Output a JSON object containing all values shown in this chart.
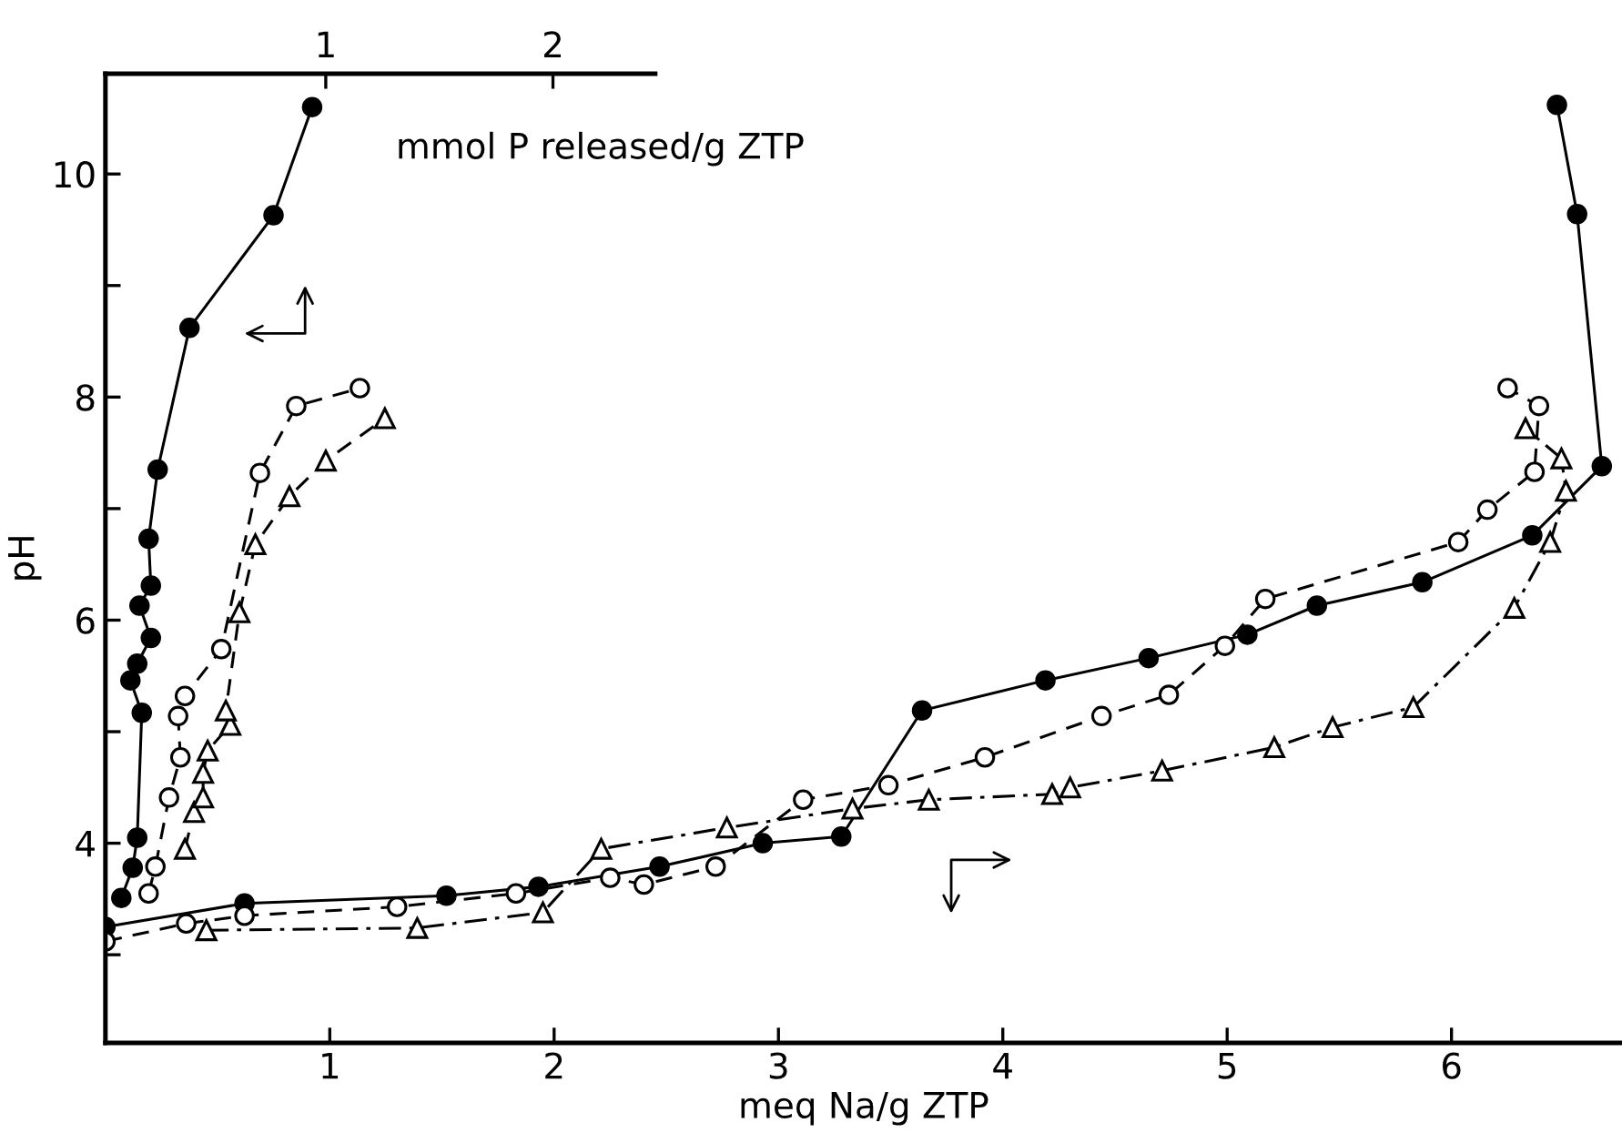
{
  "chart_data": {
    "type": "line",
    "xlabel": "meq Na/g ZTP",
    "ylabel": "pH",
    "x2label": "mmol P released/g ZTP",
    "xlim": [
      0,
      6.76
    ],
    "xticks": [
      1,
      2,
      3,
      4,
      5,
      6
    ],
    "x2lim": [
      0.03,
      2.45
    ],
    "x2ticks": [
      1,
      2
    ],
    "ylim": [
      2.21,
      10.9
    ],
    "yticks": [
      {
        "value": 3,
        "label": null
      },
      4,
      {
        "value": 5,
        "label": null
      },
      6,
      {
        "value": 7,
        "label": null
      },
      8,
      {
        "value": 9,
        "label": null
      },
      10
    ],
    "grid": false,
    "legend": false,
    "series": [
      {
        "axis": "x2",
        "color": "#000000",
        "marker": "circle",
        "line_style": "solid",
        "x": [
          0.1,
          0.15,
          0.17,
          0.19,
          0.14,
          0.17,
          0.23,
          0.18,
          0.23,
          0.22,
          0.26,
          0.4,
          0.77,
          0.94
        ],
        "values": [
          3.51,
          3.78,
          4.05,
          5.17,
          5.46,
          5.61,
          5.84,
          6.13,
          6.31,
          6.73,
          7.35,
          8.62,
          9.63,
          10.6
        ]
      },
      {
        "axis": "x2",
        "color": "#000000",
        "marker": "circle_open",
        "line_style": "dashed",
        "x": [
          0.22,
          0.25,
          0.31,
          0.36,
          0.35,
          0.38,
          0.54,
          0.71,
          0.87,
          1.15
        ],
        "values": [
          3.55,
          3.79,
          4.41,
          4.77,
          5.14,
          5.32,
          5.74,
          7.32,
          7.92,
          8.08
        ]
      },
      {
        "axis": "x2",
        "color": "#000000",
        "marker": "triangle_open",
        "line_style": "dashed",
        "x": [
          0.38,
          0.42,
          0.46,
          0.46,
          0.48,
          0.58,
          0.56,
          0.62,
          0.69,
          0.84,
          1.0,
          1.26
        ],
        "values": [
          3.95,
          4.28,
          4.41,
          4.63,
          4.83,
          5.06,
          5.19,
          6.07,
          6.68,
          7.11,
          7.43,
          7.81
        ]
      },
      {
        "color": "#000000",
        "marker": "circle",
        "line_style": "solid",
        "x": [
          0,
          0.62,
          1.52,
          1.93,
          2.47,
          2.93,
          3.28,
          3.64,
          4.19,
          4.65,
          5.09,
          5.4,
          5.87,
          6.36,
          6.67,
          6.56,
          6.47
        ],
        "values": [
          3.25,
          3.46,
          3.53,
          3.61,
          3.79,
          4.0,
          4.06,
          5.19,
          5.46,
          5.66,
          5.87,
          6.13,
          6.34,
          6.76,
          7.38,
          9.64,
          10.62
        ]
      },
      {
        "color": "#000000",
        "marker": "circle_open",
        "line_style": "dashed",
        "x": [
          0,
          0.36,
          0.62,
          1.3,
          1.83,
          2.25,
          2.4,
          2.72,
          3.11,
          3.49,
          3.92,
          4.44,
          4.74,
          4.99,
          5.17,
          6.03,
          6.16,
          6.37,
          6.39,
          6.25
        ],
        "values": [
          3.12,
          3.28,
          3.35,
          3.43,
          3.55,
          3.69,
          3.63,
          3.79,
          4.39,
          4.52,
          4.77,
          5.14,
          5.33,
          5.77,
          6.19,
          6.7,
          6.99,
          7.33,
          7.92,
          8.08
        ]
      },
      {
        "color": "#000000",
        "marker": "triangle_open",
        "line_style": "dashdot",
        "x": [
          0.45,
          1.39,
          1.95,
          2.21,
          2.77,
          3.33,
          3.67,
          4.22,
          4.3,
          4.71,
          5.21,
          5.47,
          5.83,
          6.28,
          6.44,
          6.51,
          6.49,
          6.33
        ],
        "values": [
          3.22,
          3.24,
          3.38,
          3.95,
          4.14,
          4.31,
          4.39,
          4.44,
          4.5,
          4.65,
          4.86,
          5.04,
          5.22,
          6.11,
          6.7,
          7.16,
          7.45,
          7.72
        ]
      }
    ]
  }
}
